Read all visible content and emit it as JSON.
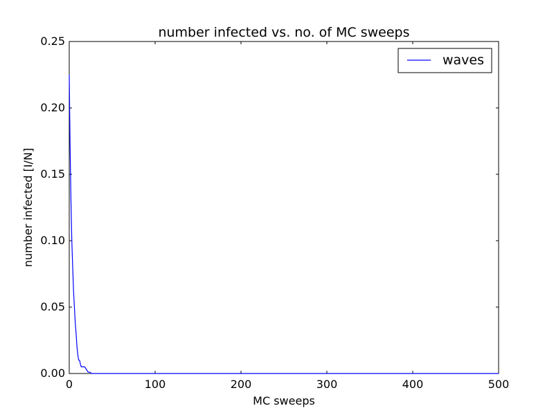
{
  "chart_data": {
    "type": "line",
    "title": "number infected vs. no. of MC sweeps",
    "xlabel": "MC sweeps",
    "ylabel": "number infected [I/N]",
    "xlim": [
      0,
      500
    ],
    "ylim": [
      0,
      0.25
    ],
    "xticks": [
      "0",
      "100",
      "200",
      "300",
      "400",
      "500"
    ],
    "yticks": [
      "0.00",
      "0.05",
      "0.10",
      "0.15",
      "0.20",
      "0.25"
    ],
    "grid": false,
    "legend_position": "top-right",
    "series": [
      {
        "name": "waves",
        "color": "#0000ff",
        "x": [
          0,
          1,
          2,
          3,
          4,
          5,
          6,
          7,
          8,
          9,
          10,
          11,
          12,
          13,
          14,
          16,
          18,
          20,
          22,
          24,
          26,
          28,
          30,
          40,
          60,
          100,
          200,
          300,
          400,
          500
        ],
        "y": [
          0.225,
          0.17,
          0.13,
          0.1,
          0.08,
          0.062,
          0.05,
          0.038,
          0.03,
          0.02,
          0.014,
          0.01,
          0.01,
          0.007,
          0.005,
          0.005,
          0.005,
          0.003,
          0.001,
          0.001,
          0.0,
          0.0,
          0.0,
          0.0,
          0.0,
          0.0,
          0.0,
          0.0,
          0.0,
          0.0
        ]
      }
    ]
  }
}
